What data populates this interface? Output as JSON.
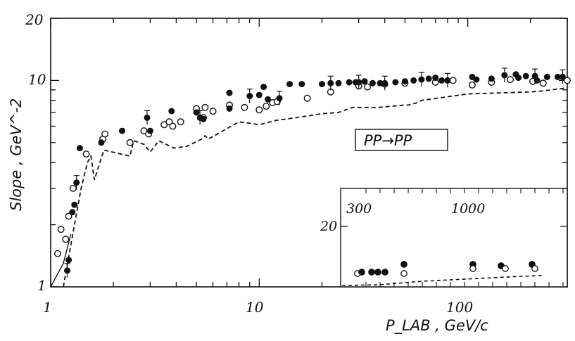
{
  "chart_data": {
    "type": "scatter",
    "title": "",
    "xlabel": "P_LAB , GeV/c",
    "ylabel": "Slope , GeV^-2",
    "xscale": "log",
    "yscale": "log",
    "xlim": [
      1,
      300
    ],
    "ylim": [
      1,
      20
    ],
    "x_ticks": [
      {
        "value": 1,
        "label": "1"
      },
      {
        "value": 10,
        "label": "10"
      },
      {
        "value": 100,
        "label": "100"
      }
    ],
    "y_ticks": [
      {
        "value": 1,
        "label": "1"
      },
      {
        "value": 10,
        "label": "10"
      },
      {
        "value": 20,
        "label": "20"
      }
    ],
    "annotation": "PP→PP",
    "series": [
      {
        "marker": "filled-circle",
        "points": [
          [
            1.2,
            1.2
          ],
          [
            1.22,
            1.35
          ],
          [
            1.27,
            2.3
          ],
          [
            1.3,
            2.5
          ],
          [
            1.33,
            3.2
          ],
          [
            1.38,
            4.7
          ],
          [
            1.75,
            5.0
          ],
          [
            2.2,
            5.7
          ],
          [
            2.9,
            6.6
          ],
          [
            3.0,
            5.7
          ],
          [
            3.8,
            7.1
          ],
          [
            5.0,
            7.0
          ],
          [
            5.2,
            6.6
          ],
          [
            5.4,
            6.5
          ],
          [
            7.2,
            8.7
          ],
          [
            7.2,
            7.3
          ],
          [
            9.0,
            8.4
          ],
          [
            10.0,
            8.5
          ],
          [
            10.5,
            9.3
          ],
          [
            11.0,
            8.1
          ],
          [
            12.5,
            8.2
          ],
          [
            14.0,
            9.6
          ],
          [
            16.0,
            9.6
          ],
          [
            20.0,
            9.6
          ],
          [
            22.0,
            9.7
          ],
          [
            24.0,
            9.7
          ],
          [
            27.0,
            9.8
          ],
          [
            29.0,
            9.8
          ],
          [
            30.0,
            9.8
          ],
          [
            32.0,
            9.9
          ],
          [
            35.0,
            9.7
          ],
          [
            38.0,
            9.7
          ],
          [
            40.0,
            9.7
          ],
          [
            45.0,
            9.8
          ],
          [
            50.0,
            9.9
          ],
          [
            55.0,
            10.0
          ],
          [
            60.0,
            10.1
          ],
          [
            65.0,
            10.2
          ],
          [
            70.0,
            10.3
          ],
          [
            75.0,
            10.0
          ],
          [
            80.0,
            10.0
          ],
          [
            105.0,
            10.4
          ],
          [
            110.0,
            10.1
          ],
          [
            130.0,
            10.2
          ],
          [
            150.0,
            10.6
          ],
          [
            170.0,
            10.7
          ],
          [
            175.0,
            10.3
          ],
          [
            190.0,
            10.5
          ],
          [
            210.0,
            10.5
          ],
          [
            215.0,
            10.0
          ],
          [
            240.0,
            10.4
          ],
          [
            270.0,
            10.4
          ],
          [
            285.0,
            10.4
          ]
        ]
      },
      {
        "marker": "open-circle",
        "points": [
          [
            1.08,
            1.45
          ],
          [
            1.12,
            1.9
          ],
          [
            1.18,
            1.7
          ],
          [
            1.22,
            2.2
          ],
          [
            1.28,
            3.0
          ],
          [
            1.48,
            4.4
          ],
          [
            1.78,
            5.2
          ],
          [
            1.82,
            5.5
          ],
          [
            2.4,
            5.0
          ],
          [
            2.8,
            5.7
          ],
          [
            2.95,
            5.5
          ],
          [
            3.5,
            6.1
          ],
          [
            3.7,
            6.3
          ],
          [
            3.85,
            6.0
          ],
          [
            4.2,
            6.3
          ],
          [
            5.0,
            7.3
          ],
          [
            5.4,
            6.6
          ],
          [
            5.5,
            7.4
          ],
          [
            6.0,
            7.1
          ],
          [
            7.2,
            7.6
          ],
          [
            8.5,
            7.4
          ],
          [
            10.0,
            7.2
          ],
          [
            10.8,
            7.5
          ],
          [
            11.6,
            7.8
          ],
          [
            12.2,
            7.9
          ],
          [
            17.0,
            8.2
          ],
          [
            22.0,
            8.8
          ],
          [
            30.0,
            9.4
          ],
          [
            33.0,
            9.3
          ],
          [
            40.0,
            9.6
          ],
          [
            50.0,
            9.7
          ],
          [
            70.0,
            9.8
          ],
          [
            85.0,
            10.0
          ],
          [
            105.0,
            9.5
          ],
          [
            130.0,
            9.8
          ],
          [
            160.0,
            10.1
          ],
          [
            205.0,
            9.9
          ],
          [
            230.0,
            9.7
          ],
          [
            300.0,
            10.0
          ]
        ]
      },
      {
        "marker": "dashed-line",
        "points": [
          [
            1.15,
            1.0
          ],
          [
            1.25,
            1.6
          ],
          [
            1.3,
            2.0
          ],
          [
            1.4,
            3.0
          ],
          [
            1.5,
            4.0
          ],
          [
            1.56,
            4.3
          ],
          [
            1.62,
            3.3
          ],
          [
            1.8,
            4.6
          ],
          [
            2.4,
            4.3
          ],
          [
            2.5,
            5.1
          ],
          [
            2.8,
            4.9
          ],
          [
            3.0,
            4.5
          ],
          [
            3.3,
            5.1
          ],
          [
            3.9,
            4.7
          ],
          [
            4.5,
            4.8
          ],
          [
            5.3,
            5.2
          ],
          [
            5.5,
            5.4
          ],
          [
            5.7,
            5.2
          ],
          [
            6.7,
            5.7
          ],
          [
            8.0,
            6.3
          ],
          [
            9.0,
            6.2
          ],
          [
            10.0,
            6.1
          ],
          [
            12.0,
            6.4
          ],
          [
            15.0,
            6.6
          ],
          [
            20.0,
            6.9
          ],
          [
            24.0,
            7.0
          ],
          [
            28.0,
            7.4
          ],
          [
            37.0,
            7.4
          ],
          [
            50.0,
            7.6
          ],
          [
            52.0,
            7.6
          ],
          [
            57.0,
            7.8
          ],
          [
            60.0,
            8.0
          ],
          [
            100.0,
            8.6
          ],
          [
            200.0,
            8.8
          ],
          [
            230.0,
            8.9
          ],
          [
            300.0,
            9.2
          ]
        ]
      },
      {
        "marker": "solid-line",
        "points": [
          [
            1.0,
            1.0
          ],
          [
            1.15,
            1.3
          ],
          [
            1.25,
            1.8
          ]
        ]
      }
    ]
  },
  "inset": {
    "tick_labels": [
      "300",
      "1000"
    ],
    "y_tick_label": "20"
  }
}
